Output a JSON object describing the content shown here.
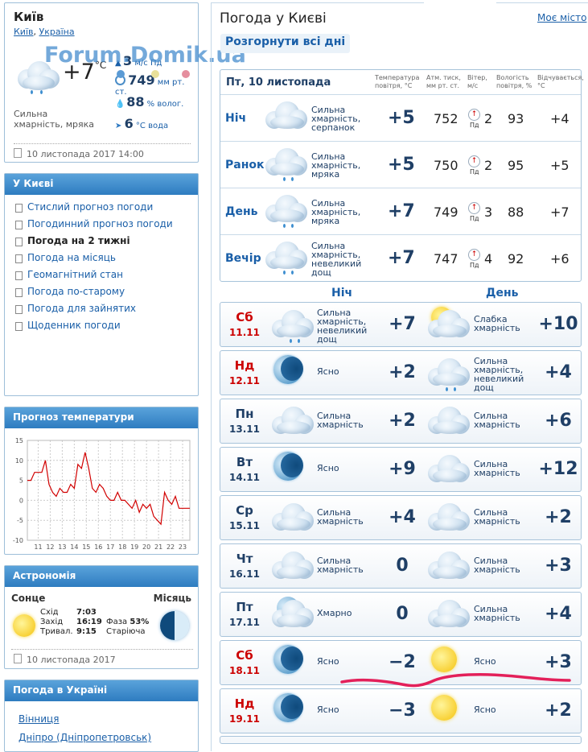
{
  "watermark": "Forum.Domik.ua",
  "current": {
    "city": "Київ",
    "city_link": "Київ",
    "country_link": "Україна",
    "temp": "+7",
    "temp_unit": "°C",
    "wind_val": "3",
    "wind_unit": "м/с",
    "wind_dir": "Пд",
    "pressure_val": "749",
    "pressure_unit": "мм рт. ст.",
    "humidity_val": "88",
    "humidity_unit": "% волог.",
    "water_val": "6",
    "water_unit": "°С вода",
    "desc": "Сильна хмарність, мряка",
    "updated": "10 листопада 2017 14:00"
  },
  "kyiv_menu": {
    "title": "У Києві",
    "items": [
      "Стислий прогноз погоди",
      "Погодинний прогноз погоди",
      "Погода на 2 тижні",
      "Погода на місяць",
      "Геомагнітний стан",
      "Погода по-старому",
      "Погода для зайнятих",
      "Щоденник погоди"
    ],
    "current_index": 2
  },
  "temp_chart": {
    "title": "Прогноз температури"
  },
  "chart_data": {
    "type": "line",
    "title": "",
    "yticks": [
      "15",
      "10",
      "5",
      "0",
      "-5",
      "-10"
    ],
    "ylim": [
      -10,
      15
    ],
    "xticks": [
      "11",
      "12",
      "13",
      "14",
      "15",
      "16",
      "17",
      "18",
      "19",
      "20",
      "21",
      "22",
      "23"
    ],
    "xlim": [
      10.1,
      23.6
    ],
    "color": "#d10000",
    "x": [
      10.1,
      10.4,
      10.7,
      11.0,
      11.3,
      11.6,
      11.9,
      12.2,
      12.5,
      12.8,
      13.1,
      13.4,
      13.7,
      14.0,
      14.3,
      14.6,
      14.9,
      15.2,
      15.5,
      15.8,
      16.1,
      16.4,
      16.7,
      17.0,
      17.3,
      17.6,
      17.9,
      18.2,
      18.5,
      18.8,
      19.1,
      19.4,
      19.7,
      20.0,
      20.3,
      20.6,
      20.9,
      21.2,
      21.5,
      21.8,
      22.1,
      22.4,
      22.7,
      23.0,
      23.3,
      23.6
    ],
    "values": [
      5,
      5,
      7,
      7,
      7,
      10,
      4,
      2,
      1,
      3,
      2,
      2,
      4,
      3,
      9,
      8,
      12,
      8,
      3,
      2,
      4,
      3,
      1,
      0,
      0,
      2,
      0,
      0,
      -1,
      -2,
      0,
      -3,
      -1,
      -2,
      -1,
      -4,
      -5,
      -6,
      2,
      0,
      -1,
      1,
      -2,
      -2,
      -2,
      -2
    ]
  },
  "astronomy": {
    "title": "Астрономія",
    "sun_label": "Сонце",
    "moon_label": "Місяць",
    "rise_label": "Схід",
    "rise": "7:03",
    "set_label": "Захід",
    "set": "16:19",
    "len_label": "Тривал.",
    "len": "9:15",
    "phase_label": "Фаза",
    "phase": "53%",
    "phase_name": "Старіюча",
    "date": "10 листопада 2017"
  },
  "ukraine": {
    "title": "Погода в Україні",
    "links": [
      "Вінниця",
      "Дніпро (Дніпропетровськ)"
    ]
  },
  "main": {
    "title": "Погода у Києві",
    "my_city": "Моє місто",
    "expand": "Розгорнути всі дні"
  },
  "today": {
    "date": "Пт, 10 листопада",
    "headers": {
      "temp": "Температура повітря, °С",
      "press": "Атм. тиск, мм рт. ст.",
      "wind": "Вітер, м/с",
      "hum": "Вологість повітря, %",
      "feels": "Відчувається, °С"
    },
    "rows": [
      {
        "period": "Ніч",
        "desc": "Сильна хмарність, серпанок",
        "temp": "+5",
        "press": "752",
        "wind_dir": "Пд",
        "wind": "2",
        "hum": "93",
        "feels": "+4"
      },
      {
        "period": "Ранок",
        "desc": "Сильна хмарність, мряка",
        "temp": "+5",
        "press": "750",
        "wind_dir": "Пд",
        "wind": "2",
        "hum": "95",
        "feels": "+5"
      },
      {
        "period": "День",
        "desc": "Сильна хмарність, мряка",
        "temp": "+7",
        "press": "749",
        "wind_dir": "Пд",
        "wind": "3",
        "hum": "88",
        "feels": "+7"
      },
      {
        "period": "Вечір",
        "desc": "Сильна хмарність, невеликий дощ",
        "temp": "+7",
        "press": "747",
        "wind_dir": "Пд",
        "wind": "4",
        "hum": "92",
        "feels": "+6"
      }
    ]
  },
  "forecast": {
    "night_label": "Ніч",
    "day_label": "День",
    "days": [
      {
        "dow": "Сб",
        "date": "11.11",
        "weekend": true,
        "n_desc": "Сильна хмарність, невеликий дощ",
        "n_temp": "+7",
        "n_icon": "cloud-rain",
        "d_desc": "Слабка хмарність",
        "d_temp": "+10",
        "d_icon": "sun-cloud"
      },
      {
        "dow": "Нд",
        "date": "12.11",
        "weekend": true,
        "n_desc": "Ясно",
        "n_temp": "+2",
        "n_icon": "moon",
        "d_desc": "Сильна хмарність, невеликий дощ",
        "d_temp": "+4",
        "d_icon": "cloud-rain"
      },
      {
        "dow": "Пн",
        "date": "13.11",
        "weekend": false,
        "n_desc": "Сильна хмарність",
        "n_temp": "+2",
        "n_icon": "cloud",
        "d_desc": "Сильна хмарність",
        "d_temp": "+6",
        "d_icon": "cloud"
      },
      {
        "dow": "Вт",
        "date": "14.11",
        "weekend": false,
        "n_desc": "Ясно",
        "n_temp": "+9",
        "n_icon": "moon",
        "d_desc": "Сильна хмарність",
        "d_temp": "+12",
        "d_icon": "cloud"
      },
      {
        "dow": "Ср",
        "date": "15.11",
        "weekend": false,
        "n_desc": "Сильна хмарність",
        "n_temp": "+4",
        "n_icon": "cloud",
        "d_desc": "Сильна хмарність",
        "d_temp": "+2",
        "d_icon": "cloud"
      },
      {
        "dow": "Чт",
        "date": "16.11",
        "weekend": false,
        "n_desc": "Сильна хмарність",
        "n_temp": "0",
        "n_icon": "cloud",
        "d_desc": "Сильна хмарність",
        "d_temp": "+3",
        "d_icon": "cloud"
      },
      {
        "dow": "Пт",
        "date": "17.11",
        "weekend": false,
        "n_desc": "Хмарно",
        "n_temp": "0",
        "n_icon": "moon-cloud",
        "d_desc": "Сильна хмарність",
        "d_temp": "+4",
        "d_icon": "cloud"
      },
      {
        "dow": "Сб",
        "date": "18.11",
        "weekend": true,
        "n_desc": "Ясно",
        "n_temp": "−2",
        "n_icon": "moon",
        "d_desc": "Ясно",
        "d_temp": "+3",
        "d_icon": "sun"
      },
      {
        "dow": "Нд",
        "date": "19.11",
        "weekend": true,
        "n_desc": "Ясно",
        "n_temp": "−3",
        "n_icon": "moon",
        "d_desc": "Ясно",
        "d_temp": "+2",
        "d_icon": "sun"
      }
    ]
  }
}
